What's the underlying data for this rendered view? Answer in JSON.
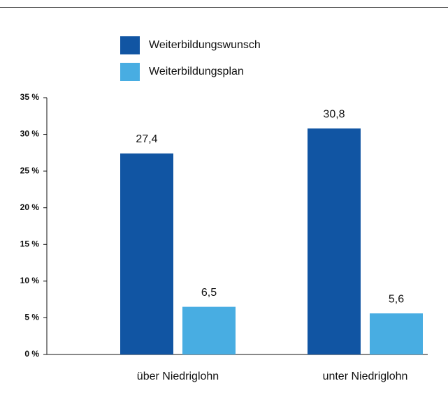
{
  "chart_data": {
    "type": "bar",
    "categories": [
      "über Niedriglohn",
      "unter Niedriglohn"
    ],
    "series": [
      {
        "name": "Weiterbildungswunsch",
        "color": "#1155a3",
        "values": [
          27.4,
          30.8
        ],
        "value_labels": [
          "27,4",
          "30,8"
        ]
      },
      {
        "name": "Weiterbildungsplan",
        "color": "#48ade2",
        "values": [
          6.5,
          5.6
        ],
        "value_labels": [
          "6,5",
          "5,6"
        ]
      }
    ],
    "ylim": [
      0,
      35
    ],
    "yticks": [
      {
        "value": 0,
        "label": "0 %"
      },
      {
        "value": 5,
        "label": "5 %"
      },
      {
        "value": 10,
        "label": "10 %"
      },
      {
        "value": 15,
        "label": "15 %"
      },
      {
        "value": 20,
        "label": "20 %"
      },
      {
        "value": 25,
        "label": "25 %"
      },
      {
        "value": 30,
        "label": "30 %"
      },
      {
        "value": 35,
        "label": "35 %"
      }
    ],
    "legend": "top"
  }
}
